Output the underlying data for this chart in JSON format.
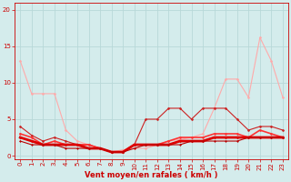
{
  "background_color": "#d4ecec",
  "grid_color": "#b8d8d8",
  "xlabel": "Vent moyen/en rafales ( km/h )",
  "xlabel_color": "#cc0000",
  "xlabel_fontsize": 6,
  "xticks": [
    0,
    1,
    2,
    3,
    4,
    5,
    6,
    7,
    8,
    9,
    10,
    11,
    12,
    13,
    14,
    15,
    16,
    17,
    18,
    19,
    20,
    21,
    22,
    23
  ],
  "yticks": [
    0,
    5,
    10,
    15,
    20
  ],
  "ylim": [
    -0.5,
    21
  ],
  "xlim": [
    -0.5,
    23.5
  ],
  "tick_color": "#cc0000",
  "tick_fontsize": 5,
  "series": [
    {
      "x": [
        0,
        1,
        2,
        3,
        4,
        5,
        6,
        7,
        8,
        9,
        10,
        11,
        12,
        13,
        14,
        15,
        16,
        17,
        18,
        19,
        20,
        21,
        22,
        23
      ],
      "y": [
        13.0,
        8.5,
        8.5,
        8.5,
        3.5,
        2.0,
        1.5,
        1.0,
        0.5,
        0.8,
        1.0,
        1.0,
        1.5,
        2.0,
        2.2,
        2.5,
        3.0,
        6.5,
        10.5,
        10.5,
        8.0,
        16.2,
        13.0,
        8.0
      ],
      "color": "#ffaaaa",
      "marker": "D",
      "markersize": 1.5,
      "linewidth": 0.8
    },
    {
      "x": [
        0,
        1,
        2,
        3,
        4,
        5,
        6,
        7,
        8,
        9,
        10,
        11,
        12,
        13,
        14,
        15,
        16,
        17,
        18,
        19,
        20,
        21,
        22,
        23
      ],
      "y": [
        4.0,
        2.8,
        2.0,
        2.5,
        2.0,
        1.5,
        1.5,
        1.0,
        0.5,
        0.5,
        1.5,
        5.0,
        5.0,
        6.5,
        6.5,
        5.0,
        6.5,
        6.5,
        6.5,
        5.0,
        3.5,
        4.0,
        4.0,
        3.5
      ],
      "color": "#cc2222",
      "marker": "D",
      "markersize": 1.5,
      "linewidth": 0.8
    },
    {
      "x": [
        0,
        1,
        2,
        3,
        4,
        5,
        6,
        7,
        8,
        9,
        10,
        11,
        12,
        13,
        14,
        15,
        16,
        17,
        18,
        19,
        20,
        21,
        22,
        23
      ],
      "y": [
        3.0,
        2.5,
        1.5,
        2.0,
        1.5,
        1.5,
        1.5,
        1.0,
        0.5,
        0.5,
        1.5,
        1.5,
        1.5,
        2.0,
        2.5,
        2.5,
        2.5,
        3.0,
        3.0,
        3.0,
        2.5,
        3.5,
        3.0,
        2.5
      ],
      "color": "#ff3333",
      "marker": "D",
      "markersize": 1.5,
      "linewidth": 1.2
    },
    {
      "x": [
        0,
        1,
        2,
        3,
        4,
        5,
        6,
        7,
        8,
        9,
        10,
        11,
        12,
        13,
        14,
        15,
        16,
        17,
        18,
        19,
        20,
        21,
        22,
        23
      ],
      "y": [
        2.5,
        2.0,
        1.5,
        1.5,
        1.5,
        1.5,
        1.0,
        1.0,
        0.5,
        0.5,
        1.5,
        1.5,
        1.5,
        1.5,
        2.0,
        2.0,
        2.0,
        2.5,
        2.5,
        2.5,
        2.5,
        2.5,
        2.5,
        2.5
      ],
      "color": "#dd0000",
      "marker": "D",
      "markersize": 1.5,
      "linewidth": 2.0
    },
    {
      "x": [
        0,
        1,
        2,
        3,
        4,
        5,
        6,
        7,
        8,
        9,
        10,
        11,
        12,
        13,
        14,
        15,
        16,
        17,
        18,
        19,
        20,
        21,
        22,
        23
      ],
      "y": [
        2.0,
        1.5,
        1.5,
        1.5,
        1.0,
        1.0,
        1.0,
        1.0,
        0.5,
        0.5,
        1.0,
        1.5,
        1.5,
        1.5,
        1.5,
        2.0,
        2.0,
        2.0,
        2.0,
        2.0,
        2.5,
        2.5,
        2.5,
        2.5
      ],
      "color": "#bb0000",
      "marker": "D",
      "markersize": 1.2,
      "linewidth": 0.8
    }
  ]
}
